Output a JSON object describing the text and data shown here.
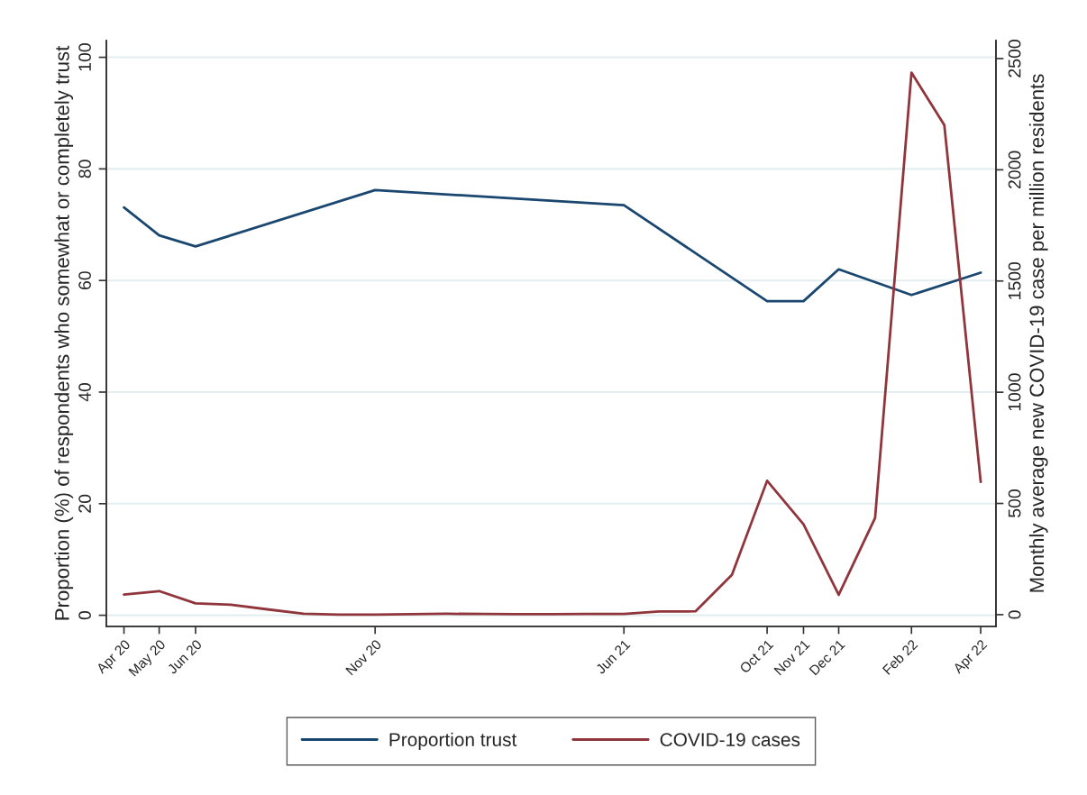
{
  "chart_data": {
    "type": "line",
    "ylabel": "Proportion (%) of respondents who somewhat or completely trust",
    "y2label": "Monthly average new COVID-19 case per million residents",
    "xlim": [
      "2020-03-17",
      "2022-04-14"
    ],
    "xticks": [
      {
        "value": "2020-04",
        "label": "Apr 20"
      },
      {
        "value": "2020-05",
        "label": "May 20"
      },
      {
        "value": "2020-06",
        "label": "Jun 20"
      },
      {
        "value": "2020-11",
        "label": "Nov 20"
      },
      {
        "value": "2021-06",
        "label": "Jun 21"
      },
      {
        "value": "2021-10",
        "label": "Oct 21"
      },
      {
        "value": "2021-11",
        "label": "Nov 21"
      },
      {
        "value": "2021-12",
        "label": "Dec 21"
      },
      {
        "value": "2022-02",
        "label": "Feb 22"
      },
      {
        "value": "2022-04",
        "label": "Apr 22"
      }
    ],
    "ylim": [
      -2,
      103
    ],
    "yticks": [
      0,
      20,
      40,
      60,
      80,
      100
    ],
    "y2lim": [
      -53,
      2581
    ],
    "y2ticks": [
      0,
      500,
      1000,
      1500,
      2000,
      2500
    ],
    "grid": "y",
    "legend": "bottom",
    "line_style": "solid",
    "marker": "none",
    "series": [
      {
        "name": "Proportion trust",
        "color": "#1a476f",
        "x": [
          "2020-04",
          "2020-05",
          "2020-06",
          "2020-11",
          "2021-06",
          "2021-10",
          "2021-11",
          "2021-12",
          "2022-02",
          "2022-04"
        ],
        "values": [
          73.1,
          68.1,
          66.1,
          76.2,
          73.5,
          56.3,
          56.3,
          62.0,
          57.4,
          61.4
        ]
      },
      {
        "name": "COVID-19 cases",
        "color": "#90353b",
        "axis": "y2",
        "x": [
          "2020-04",
          "2020-05",
          "2020-06",
          "2020-07",
          "2020-08",
          "2020-09",
          "2020-10",
          "2020-11",
          "2020-12",
          "2021-01",
          "2021-02",
          "2021-03",
          "2021-04",
          "2021-05",
          "2021-06",
          "2021-07",
          "2021-08",
          "2021-09",
          "2021-10",
          "2021-11",
          "2021-12",
          "2022-01",
          "2022-02",
          "2022-03",
          "2022-04"
        ],
        "values": [
          90,
          106,
          51,
          45,
          24,
          4,
          0,
          0,
          2,
          4,
          3,
          2,
          2,
          3,
          3,
          14,
          15,
          179,
          602,
          406,
          89,
          435,
          2437,
          2201,
          597
        ]
      }
    ]
  }
}
